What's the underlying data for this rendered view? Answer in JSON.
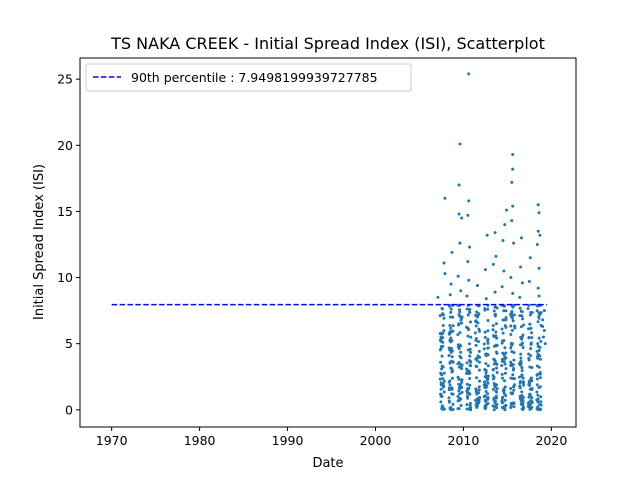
{
  "chart_data": {
    "type": "scatter",
    "title": "TS NAKA CREEK - Initial Spread Index (ISI), Scatterplot",
    "xlabel": "Date",
    "ylabel": "Initial Spread Index (ISI)",
    "xlim": [
      1966.4,
      2022.8
    ],
    "ylim": [
      -1.3,
      26.6
    ],
    "x_ticks": [
      1970,
      1980,
      1990,
      2000,
      2010,
      2020
    ],
    "y_ticks": [
      0,
      5,
      10,
      15,
      20,
      25
    ],
    "grid": false,
    "legend_placement": "upper-left",
    "series": [
      {
        "type": "scatter",
        "color": "#1f77b4",
        "season_starts": [
          2007,
          2008,
          2009,
          2010,
          2011,
          2012,
          2013,
          2014,
          2015,
          2016,
          2017,
          2018
        ],
        "points": [
          [
            2009.6,
            20.1
          ],
          [
            2010.6,
            25.4
          ],
          [
            2015.6,
            19.3
          ],
          [
            2015.6,
            18.2
          ],
          [
            2015.5,
            17.2
          ],
          [
            2009.5,
            17.0
          ],
          [
            2007.9,
            16.0
          ],
          [
            2010.6,
            15.8
          ],
          [
            2018.5,
            15.5
          ],
          [
            2015.6,
            15.4
          ],
          [
            2014.9,
            15.1
          ],
          [
            2009.5,
            14.8
          ],
          [
            2010.5,
            14.7
          ],
          [
            2018.6,
            14.9
          ],
          [
            2009.8,
            14.5
          ],
          [
            2015.5,
            14.3
          ],
          [
            2014.7,
            14.0
          ],
          [
            2013.6,
            13.4
          ],
          [
            2018.5,
            13.5
          ],
          [
            2012.7,
            13.2
          ],
          [
            2016.6,
            13.0
          ],
          [
            2018.7,
            13.2
          ],
          [
            2014.5,
            12.8
          ],
          [
            2009.6,
            12.6
          ],
          [
            2015.7,
            12.6
          ],
          [
            2018.4,
            12.5
          ],
          [
            2010.7,
            12.3
          ],
          [
            2008.7,
            11.9
          ],
          [
            2013.7,
            11.6
          ],
          [
            2017.6,
            11.5
          ],
          [
            2007.8,
            11.1
          ],
          [
            2010.5,
            11.2
          ],
          [
            2013.4,
            11.0
          ],
          [
            2016.5,
            10.8
          ],
          [
            2018.6,
            10.7
          ],
          [
            2012.5,
            10.6
          ],
          [
            2014.6,
            10.5
          ],
          [
            2007.9,
            10.3
          ],
          [
            2009.4,
            10.1
          ],
          [
            2015.4,
            10.0
          ],
          [
            2010.6,
            9.8
          ],
          [
            2017.5,
            9.7
          ],
          [
            2008.6,
            9.5
          ],
          [
            2011.6,
            9.4
          ],
          [
            2016.7,
            9.6
          ],
          [
            2014.4,
            9.3
          ],
          [
            2018.5,
            9.2
          ],
          [
            2009.7,
            9.0
          ],
          [
            2013.6,
            8.9
          ],
          [
            2015.6,
            8.8
          ],
          [
            2007.1,
            8.5
          ],
          [
            2008.5,
            8.7
          ],
          [
            2010.4,
            8.6
          ],
          [
            2012.6,
            8.4
          ],
          [
            2016.4,
            8.5
          ],
          [
            2018.6,
            8.6
          ],
          [
            2019.2,
            7.5
          ],
          [
            2019.0,
            6.3
          ],
          [
            2019.1,
            5.5
          ],
          [
            2019.3,
            5.0
          ],
          [
            2019.2,
            6.0
          ],
          [
            2019.0,
            6.8
          ],
          [
            2009.5,
            7.2
          ],
          [
            2015.5,
            7.1
          ],
          [
            2011.5,
            7.4
          ]
        ]
      },
      {
        "type": "hline",
        "name": "90th percentile : 7.9498199939727785",
        "y": 7.9498199939727785,
        "x_range": [
          1970,
          2019.5
        ],
        "color": "#0000ff",
        "style": "dashed"
      }
    ]
  }
}
